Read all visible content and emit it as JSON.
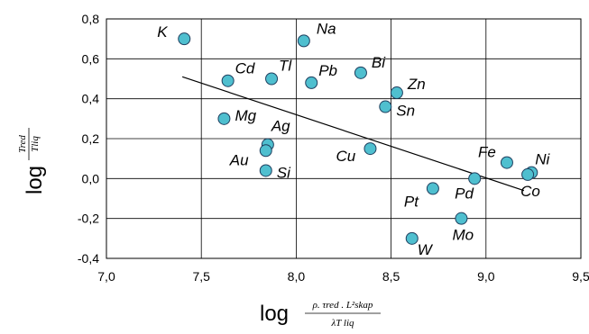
{
  "chart_data": {
    "type": "scatter",
    "title": "",
    "xlabel": {
      "prefix": "log",
      "numerator": "ρ. τred . L²skap",
      "denominator": "λT liq"
    },
    "ylabel": {
      "prefix": "log",
      "numerator": "Tred",
      "denominator": "Tliq"
    },
    "xlim": [
      7.0,
      9.5
    ],
    "ylim": [
      -0.4,
      0.8
    ],
    "x_ticks": [
      7.0,
      7.5,
      8.0,
      8.5,
      9.0,
      9.5
    ],
    "y_ticks": [
      -0.4,
      -0.2,
      0.0,
      0.2,
      0.4,
      0.6,
      0.8
    ],
    "x_tick_labels": [
      "7,0",
      "7,5",
      "8,0",
      "8,5",
      "9,0",
      "9,5"
    ],
    "y_tick_labels": [
      "-0,4",
      "-0,2",
      "0,0",
      "0,2",
      "0,4",
      "0,6",
      "0,8"
    ],
    "grid": true,
    "marker_color": "#4fbfcf",
    "marker_edge": "#1f3f5f",
    "points": [
      {
        "label": "K",
        "x": 7.41,
        "y": 0.7
      },
      {
        "label": "Na",
        "x": 8.04,
        "y": 0.69
      },
      {
        "label": "Cd",
        "x": 7.64,
        "y": 0.49
      },
      {
        "label": "Tl",
        "x": 7.87,
        "y": 0.5
      },
      {
        "label": "Pb",
        "x": 8.08,
        "y": 0.48
      },
      {
        "label": "Bi",
        "x": 8.34,
        "y": 0.53
      },
      {
        "label": "Zn",
        "x": 8.53,
        "y": 0.43
      },
      {
        "label": "Sn",
        "x": 8.47,
        "y": 0.36
      },
      {
        "label": "Mg",
        "x": 7.62,
        "y": 0.3
      },
      {
        "label": "Ag",
        "x": 7.85,
        "y": 0.17
      },
      {
        "label": "Au",
        "x": 7.84,
        "y": 0.14
      },
      {
        "label": "Si",
        "x": 7.84,
        "y": 0.04
      },
      {
        "label": "Cu",
        "x": 8.39,
        "y": 0.15
      },
      {
        "label": "Fe",
        "x": 9.11,
        "y": 0.08
      },
      {
        "label": "Ni",
        "x": 9.24,
        "y": 0.03
      },
      {
        "label": "Co",
        "x": 9.22,
        "y": 0.02
      },
      {
        "label": "Pd",
        "x": 8.94,
        "y": 0.0
      },
      {
        "label": "Pt",
        "x": 8.72,
        "y": -0.05
      },
      {
        "label": "Mo",
        "x": 8.87,
        "y": -0.2
      },
      {
        "label": "W",
        "x": 8.61,
        "y": -0.3
      }
    ],
    "trendline": {
      "x": [
        7.4,
        9.2
      ],
      "y": [
        0.51,
        -0.06
      ]
    }
  }
}
